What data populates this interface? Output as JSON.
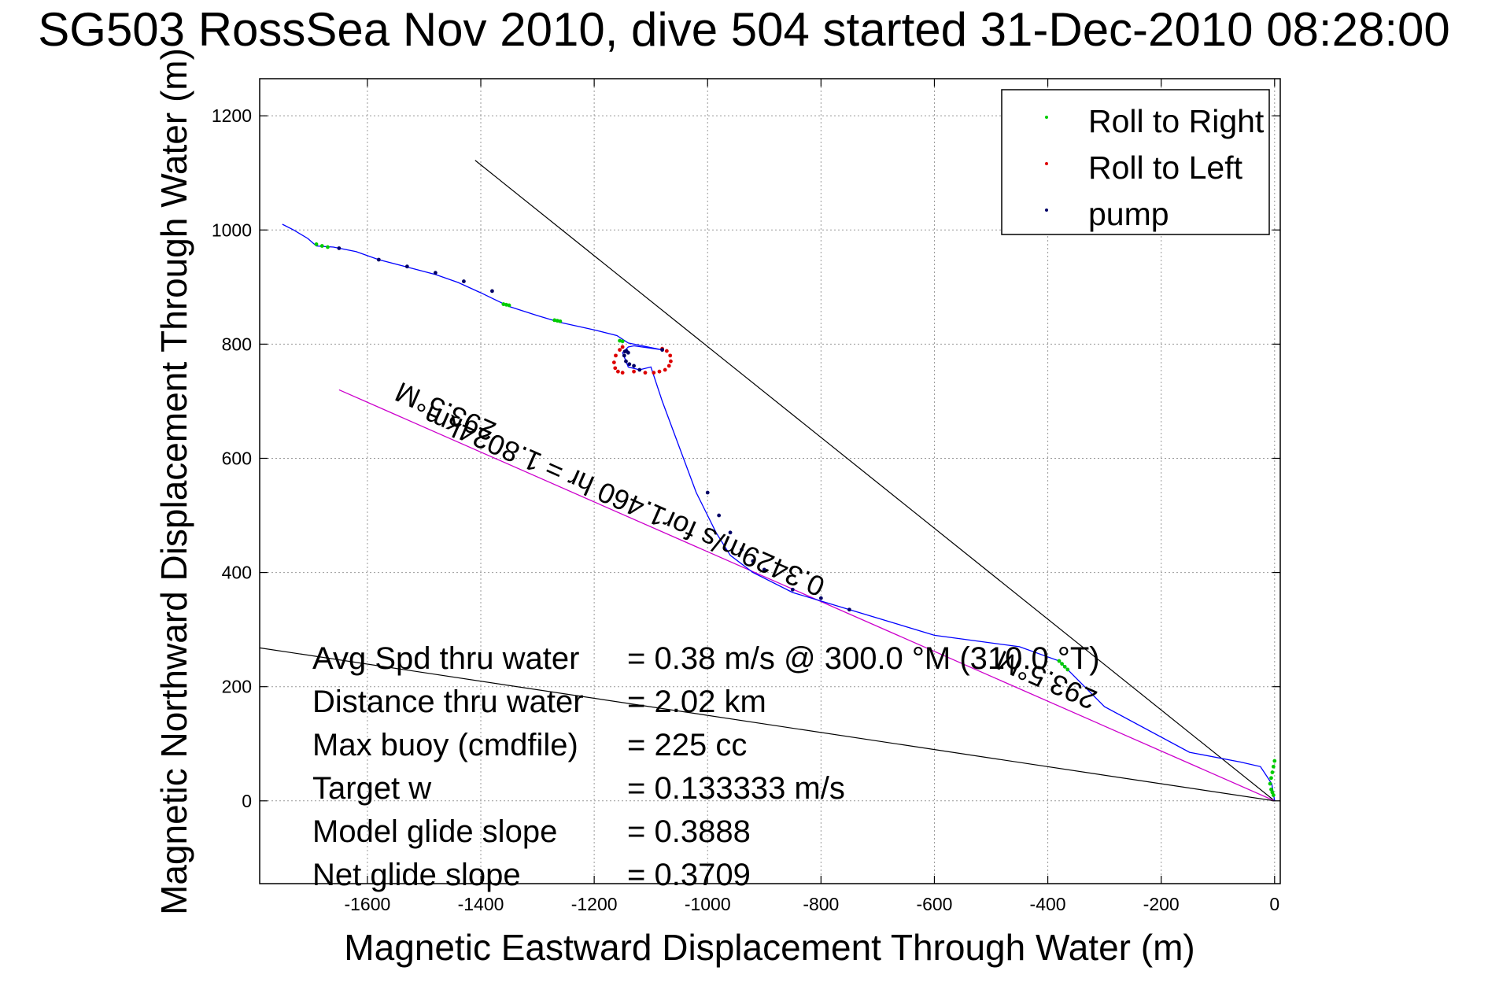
{
  "title": "SG503 RossSea Nov 2010, dive 504 started 31-Dec-2010 08:28:00",
  "chart_data": {
    "type": "line",
    "xlabel": "Magnetic Eastward Displacement Through Water (m)",
    "ylabel": "Magnetic Northward Displacement Through Water (m)",
    "xlim": [
      -1790,
      10
    ],
    "ylim": [
      -145,
      1265
    ],
    "xticks": [
      -1600,
      -1400,
      -1200,
      -1000,
      -800,
      -600,
      -400,
      -200,
      0
    ],
    "yticks": [
      0,
      200,
      400,
      600,
      800,
      1000,
      1200
    ],
    "grid": true,
    "legend_position": "top-right",
    "legend": [
      {
        "label": "Roll to Right",
        "color": "#00cc00"
      },
      {
        "label": "Roll to Left",
        "color": "#dd0000"
      },
      {
        "label": "pump",
        "color": "#000066"
      }
    ],
    "track": {
      "color": "#0000ff",
      "x": [
        0,
        -5,
        -25,
        -60,
        -150,
        -300,
        -360,
        -380,
        -450,
        -600,
        -750,
        -850,
        -920,
        -960,
        -985,
        -1000,
        -1020,
        -1050,
        -1080,
        -1100,
        -1120,
        -1140,
        -1150,
        -1140,
        -1130,
        -1080,
        -1140,
        -1160,
        -1200,
        -1260,
        -1300,
        -1350,
        -1400,
        -1440,
        -1480,
        -1530,
        -1580,
        -1620,
        -1660,
        -1690,
        -1705,
        -1730,
        -1750
      ],
      "y": [
        0,
        30,
        60,
        68,
        85,
        165,
        225,
        245,
        270,
        290,
        335,
        365,
        400,
        430,
        470,
        500,
        540,
        620,
        700,
        760,
        755,
        760,
        785,
        795,
        797,
        790,
        802,
        815,
        825,
        838,
        850,
        866,
        890,
        908,
        922,
        935,
        948,
        962,
        970,
        972,
        985,
        1000,
        1010
      ]
    },
    "roll_right_points": {
      "x": [
        0,
        -2,
        -4,
        -6,
        -8,
        -6,
        -4,
        -2,
        -365,
        -370,
        -375,
        -380,
        -1350,
        -1355,
        -1360,
        -1260,
        -1265,
        -1270,
        -1150,
        -1155,
        -1670,
        -1680,
        -1690
      ],
      "y": [
        70,
        60,
        50,
        40,
        30,
        20,
        15,
        10,
        230,
        235,
        240,
        245,
        868,
        869,
        870,
        840,
        841,
        842,
        805,
        806,
        970,
        972,
        975
      ]
    },
    "roll_left_points": {
      "x": [
        -1150,
        -1155,
        -1162,
        -1165,
        -1163,
        -1158,
        -1150,
        -1080,
        -1072,
        -1066,
        -1065,
        -1068,
        -1075,
        -1085,
        -1095,
        -1110,
        -1130
      ],
      "y": [
        795,
        790,
        780,
        768,
        758,
        752,
        750,
        792,
        788,
        780,
        770,
        762,
        755,
        752,
        750,
        750,
        752
      ]
    },
    "pump_points": {
      "x": [
        -1140,
        -1143,
        -1146,
        -1147,
        -1144,
        -1138,
        -1130,
        -1120,
        -1080,
        -1000,
        -980,
        -960,
        -940,
        -920,
        -900,
        -850,
        -800,
        -750,
        -1380,
        -1430,
        -1480,
        -1530,
        -1580,
        -1650
      ],
      "y": [
        785,
        788,
        787,
        780,
        770,
        765,
        762,
        755,
        790,
        540,
        500,
        470,
        440,
        420,
        405,
        370,
        355,
        335,
        893,
        910,
        925,
        936,
        948,
        968
      ]
    },
    "heading_line": {
      "x": [
        -1650,
        0
      ],
      "y": [
        720,
        0
      ],
      "color": "#cc00cc"
    },
    "reference_lines": [
      {
        "x": [
          -1410,
          0
        ],
        "y": [
          1122,
          0
        ],
        "color": "#000000"
      },
      {
        "x": [
          -1790,
          0
        ],
        "y": [
          268,
          0
        ],
        "color": "#000000"
      }
    ],
    "annotations": [
      {
        "text": "293.5°M",
        "x": -1370,
        "y": 660
      },
      {
        "text": "0.3429m/s for1.460 hr = 1.8024km",
        "x": -790,
        "y": 388
      },
      {
        "text": "293.5°M",
        "x": -310,
        "y": 190
      }
    ],
    "stats": [
      {
        "label": "Avg Spd thru water",
        "value": "=  0.38 m/s @ 300.0 °M (310.0 °T)"
      },
      {
        "label": "Distance thru water",
        "value": "=  2.02 km"
      },
      {
        "label": "Max buoy (cmdfile)",
        "value": "= 225 cc"
      },
      {
        "label": "Target w",
        "value": "= 0.133333 m/s"
      },
      {
        "label": "Model glide slope",
        "value": "= 0.3888"
      },
      {
        "label": "Net glide slope",
        "value": "= 0.3709"
      }
    ]
  }
}
